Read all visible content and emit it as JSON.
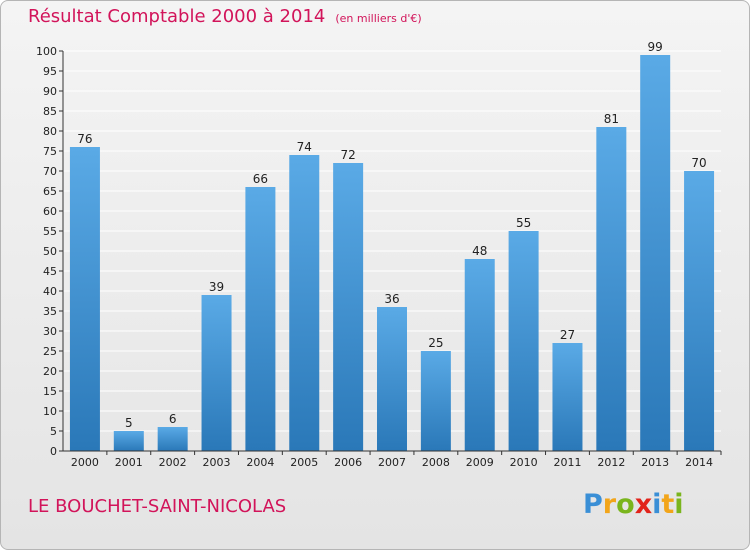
{
  "chart_data": {
    "type": "bar",
    "title": "Résultat Comptable 2000 à 2014",
    "unit_note": "(en milliers d'€)",
    "categories": [
      "2000",
      "2001",
      "2002",
      "2003",
      "2004",
      "2005",
      "2006",
      "2007",
      "2008",
      "2009",
      "2010",
      "2011",
      "2012",
      "2013",
      "2014"
    ],
    "values": [
      76,
      5,
      6,
      39,
      66,
      74,
      72,
      36,
      25,
      48,
      55,
      27,
      81,
      99,
      70
    ],
    "ylim": [
      0,
      100
    ],
    "ytick_step": 5,
    "grid": true,
    "xlabel": "",
    "ylabel": ""
  },
  "footer": {
    "commune": "LE BOUCHET-SAINT-NICOLAS",
    "logo_letters": [
      "P",
      "r",
      "o",
      "x",
      "i",
      "t",
      "i"
    ]
  },
  "colors": {
    "title": "#d2145a",
    "bar_light": "#5aaae6",
    "bar_dark": "#2a78b8",
    "grid": "#ffffff",
    "axis": "#333333",
    "logo": [
      "#3a8fd6",
      "#f2a51a",
      "#7ab51d",
      "#e2231a",
      "#3a8fd6",
      "#f2a51a",
      "#7ab51d"
    ]
  }
}
